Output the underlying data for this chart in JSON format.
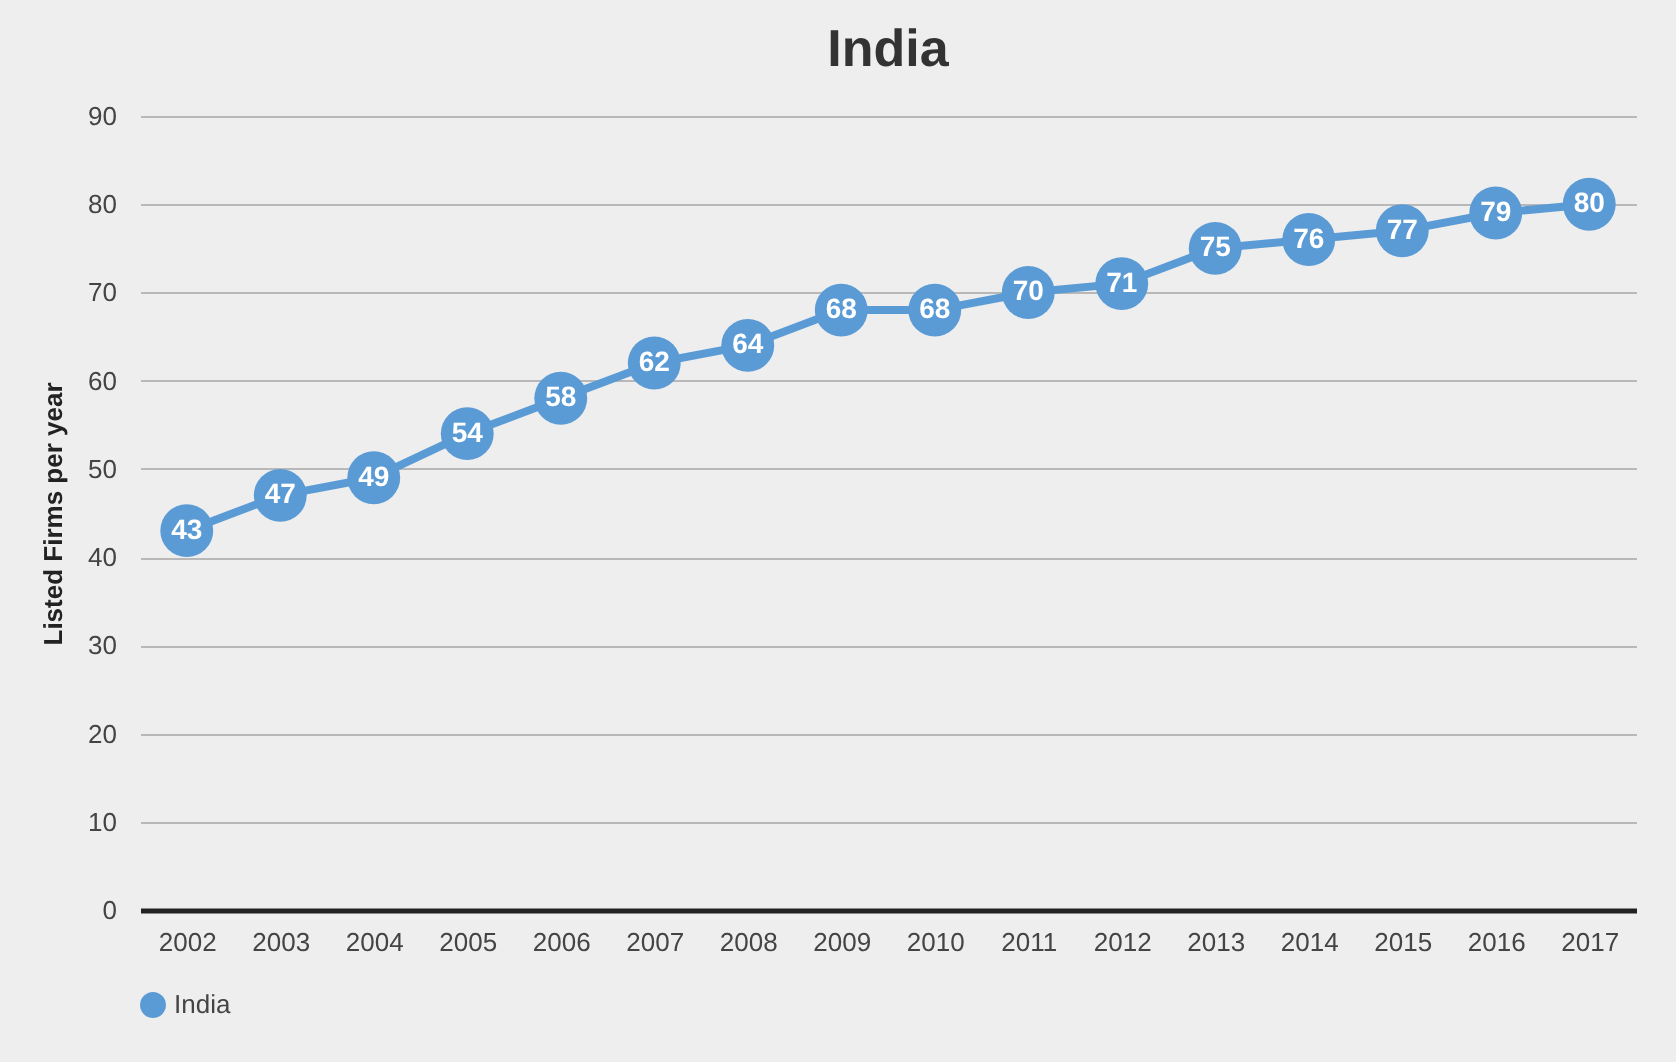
{
  "chart_data": {
    "type": "line",
    "title": "India",
    "ylabel": "Listed Firms per year",
    "categories": [
      "2002",
      "2003",
      "2004",
      "2005",
      "2006",
      "2007",
      "2008",
      "2009",
      "2010",
      "2011",
      "2012",
      "2013",
      "2014",
      "2015",
      "2016",
      "2017"
    ],
    "series": [
      {
        "name": "India",
        "color": "#5b9bd5",
        "values": [
          43,
          47,
          49,
          54,
          58,
          62,
          64,
          68,
          68,
          70,
          71,
          75,
          76,
          77,
          79,
          80
        ]
      }
    ],
    "ylim": [
      0,
      90
    ],
    "yticks": [
      0,
      10,
      20,
      30,
      40,
      50,
      60,
      70,
      80,
      90
    ],
    "grid": "y",
    "legend": "bottom",
    "marker": "circle",
    "line_style": "solid",
    "data_labels": true
  }
}
